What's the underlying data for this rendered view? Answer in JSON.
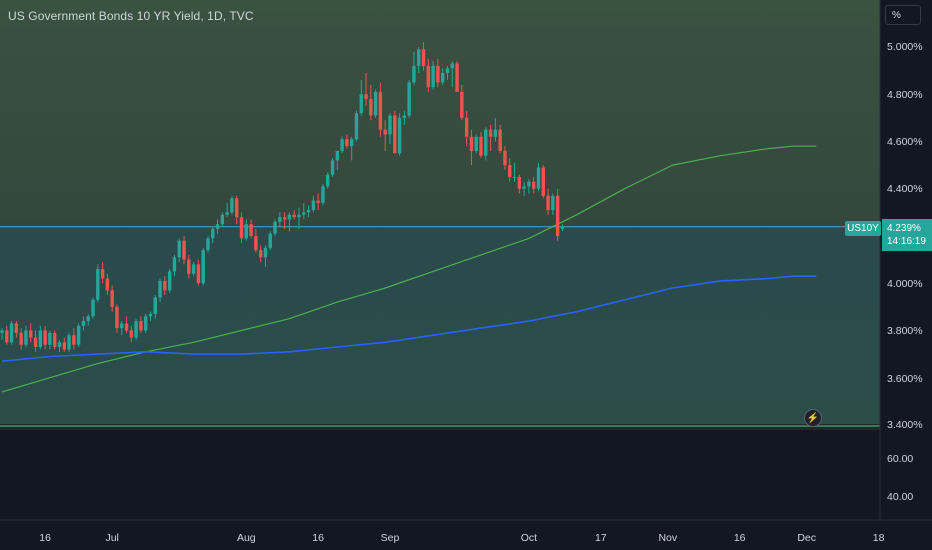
{
  "header": {
    "title": "US Government Bonds 10 YR Yield, 1D, TVC",
    "unit": "%"
  },
  "price_axis": {
    "ticks": [
      "5.000%",
      "4.800%",
      "4.600%",
      "4.400%",
      "4.000%",
      "3.800%",
      "3.600%",
      "3.400%"
    ],
    "symbol": "US10Y",
    "last_price": "4.239%",
    "countdown": "14:16:19"
  },
  "indicator_axis": {
    "ticks": [
      "60.00",
      "40.00"
    ]
  },
  "time_axis": {
    "labels": [
      "16",
      "Jul",
      "Aug",
      "16",
      "Sep",
      "Oct",
      "17",
      "Nov",
      "16",
      "Dec",
      "18"
    ]
  },
  "colors": {
    "up": "#26a69a",
    "down": "#ef5350",
    "ma_fast": "#4caf50",
    "ma_slow": "#2962ff",
    "price_line": "#4da6c8"
  },
  "chart_data": {
    "type": "candlestick",
    "title": "US Government Bonds 10 YR Yield, 1D, TVC",
    "ylim": [
      3.4,
      5.07
    ],
    "last_price": 4.239,
    "candles": [
      [
        3.79,
        3.81,
        3.76,
        3.8
      ],
      [
        3.8,
        3.82,
        3.74,
        3.75
      ],
      [
        3.75,
        3.84,
        3.74,
        3.83
      ],
      [
        3.83,
        3.84,
        3.77,
        3.79
      ],
      [
        3.79,
        3.81,
        3.72,
        3.74
      ],
      [
        3.74,
        3.82,
        3.73,
        3.8
      ],
      [
        3.8,
        3.83,
        3.75,
        3.77
      ],
      [
        3.77,
        3.8,
        3.71,
        3.73
      ],
      [
        3.73,
        3.82,
        3.72,
        3.8
      ],
      [
        3.8,
        3.82,
        3.72,
        3.74
      ],
      [
        3.74,
        3.8,
        3.72,
        3.79
      ],
      [
        3.79,
        3.8,
        3.72,
        3.73
      ],
      [
        3.73,
        3.76,
        3.71,
        3.75
      ],
      [
        3.75,
        3.77,
        3.71,
        3.72
      ],
      [
        3.72,
        3.79,
        3.71,
        3.78
      ],
      [
        3.78,
        3.81,
        3.72,
        3.74
      ],
      [
        3.74,
        3.83,
        3.73,
        3.82
      ],
      [
        3.82,
        3.86,
        3.8,
        3.84
      ],
      [
        3.84,
        3.87,
        3.82,
        3.86
      ],
      [
        3.86,
        3.94,
        3.85,
        3.93
      ],
      [
        3.93,
        4.08,
        3.92,
        4.06
      ],
      [
        4.06,
        4.09,
        4.0,
        4.02
      ],
      [
        4.02,
        4.04,
        3.95,
        3.97
      ],
      [
        3.97,
        3.99,
        3.88,
        3.9
      ],
      [
        3.9,
        3.91,
        3.79,
        3.81
      ],
      [
        3.81,
        3.84,
        3.78,
        3.83
      ],
      [
        3.83,
        3.86,
        3.79,
        3.8
      ],
      [
        3.8,
        3.82,
        3.75,
        3.77
      ],
      [
        3.77,
        3.85,
        3.76,
        3.84
      ],
      [
        3.84,
        3.86,
        3.79,
        3.8
      ],
      [
        3.8,
        3.87,
        3.79,
        3.86
      ],
      [
        3.86,
        3.88,
        3.84,
        3.87
      ],
      [
        3.87,
        3.95,
        3.85,
        3.94
      ],
      [
        3.94,
        4.02,
        3.92,
        4.01
      ],
      [
        4.01,
        4.03,
        3.95,
        3.97
      ],
      [
        3.97,
        4.06,
        3.96,
        4.05
      ],
      [
        4.05,
        4.12,
        4.03,
        4.11
      ],
      [
        4.11,
        4.19,
        4.09,
        4.18
      ],
      [
        4.18,
        4.2,
        4.08,
        4.1
      ],
      [
        4.1,
        4.12,
        4.02,
        4.04
      ],
      [
        4.04,
        4.09,
        4.03,
        4.08
      ],
      [
        4.08,
        4.1,
        3.99,
        4.0
      ],
      [
        4.0,
        4.15,
        3.99,
        4.14
      ],
      [
        4.14,
        4.2,
        4.13,
        4.19
      ],
      [
        4.19,
        4.24,
        4.17,
        4.23
      ],
      [
        4.23,
        4.27,
        4.21,
        4.25
      ],
      [
        4.25,
        4.3,
        4.24,
        4.29
      ],
      [
        4.29,
        4.34,
        4.28,
        4.3
      ],
      [
        4.3,
        4.37,
        4.29,
        4.36
      ],
      [
        4.36,
        4.37,
        4.25,
        4.28
      ],
      [
        4.28,
        4.3,
        4.17,
        4.19
      ],
      [
        4.19,
        4.27,
        4.18,
        4.25
      ],
      [
        4.25,
        4.27,
        4.19,
        4.2
      ],
      [
        4.2,
        4.23,
        4.13,
        4.14
      ],
      [
        4.14,
        4.16,
        4.09,
        4.11
      ],
      [
        4.11,
        4.16,
        4.07,
        4.15
      ],
      [
        4.15,
        4.22,
        4.14,
        4.21
      ],
      [
        4.21,
        4.27,
        4.2,
        4.26
      ],
      [
        4.26,
        4.3,
        4.24,
        4.28
      ],
      [
        4.28,
        4.3,
        4.23,
        4.27
      ],
      [
        4.27,
        4.3,
        4.22,
        4.29
      ],
      [
        4.29,
        4.31,
        4.27,
        4.28
      ],
      [
        4.28,
        4.32,
        4.23,
        4.29
      ],
      [
        4.29,
        4.34,
        4.27,
        4.3
      ],
      [
        4.3,
        4.33,
        4.28,
        4.31
      ],
      [
        4.31,
        4.37,
        4.3,
        4.35
      ],
      [
        4.35,
        4.38,
        4.31,
        4.34
      ],
      [
        4.34,
        4.42,
        4.33,
        4.41
      ],
      [
        4.41,
        4.47,
        4.4,
        4.46
      ],
      [
        4.46,
        4.53,
        4.45,
        4.52
      ],
      [
        4.52,
        4.56,
        4.48,
        4.56
      ],
      [
        4.56,
        4.62,
        4.55,
        4.61
      ],
      [
        4.61,
        4.63,
        4.57,
        4.58
      ],
      [
        4.58,
        4.62,
        4.52,
        4.61
      ],
      [
        4.61,
        4.73,
        4.6,
        4.72
      ],
      [
        4.72,
        4.86,
        4.71,
        4.8
      ],
      [
        4.8,
        4.89,
        4.75,
        4.78
      ],
      [
        4.78,
        4.84,
        4.69,
        4.71
      ],
      [
        4.71,
        4.82,
        4.7,
        4.81
      ],
      [
        4.81,
        4.85,
        4.62,
        4.65
      ],
      [
        4.65,
        4.69,
        4.56,
        4.63
      ],
      [
        4.63,
        4.72,
        4.59,
        4.71
      ],
      [
        4.71,
        4.73,
        4.55,
        4.55
      ],
      [
        4.55,
        4.72,
        4.54,
        4.7
      ],
      [
        4.7,
        4.73,
        4.67,
        4.71
      ],
      [
        4.71,
        4.86,
        4.7,
        4.85
      ],
      [
        4.85,
        4.98,
        4.84,
        4.92
      ],
      [
        4.92,
        5.0,
        4.89,
        4.99
      ],
      [
        4.99,
        5.02,
        4.9,
        4.92
      ],
      [
        4.92,
        4.95,
        4.81,
        4.83
      ],
      [
        4.83,
        4.94,
        4.82,
        4.92
      ],
      [
        4.92,
        4.95,
        4.83,
        4.85
      ],
      [
        4.85,
        4.91,
        4.84,
        4.89
      ],
      [
        4.89,
        4.92,
        4.86,
        4.91
      ],
      [
        4.91,
        4.94,
        4.83,
        4.93
      ],
      [
        4.93,
        4.94,
        4.82,
        4.81
      ],
      [
        4.81,
        4.84,
        4.69,
        4.7
      ],
      [
        4.7,
        4.73,
        4.58,
        4.62
      ],
      [
        4.62,
        4.65,
        4.5,
        4.56
      ],
      [
        4.56,
        4.63,
        4.55,
        4.62
      ],
      [
        4.62,
        4.64,
        4.53,
        4.54
      ],
      [
        4.54,
        4.66,
        4.52,
        4.65
      ],
      [
        4.65,
        4.67,
        4.56,
        4.62
      ],
      [
        4.62,
        4.7,
        4.6,
        4.65
      ],
      [
        4.65,
        4.67,
        4.55,
        4.56
      ],
      [
        4.56,
        4.58,
        4.48,
        4.5
      ],
      [
        4.5,
        4.53,
        4.43,
        4.45
      ],
      [
        4.45,
        4.51,
        4.43,
        4.45
      ],
      [
        4.45,
        4.46,
        4.38,
        4.4
      ],
      [
        4.4,
        4.43,
        4.37,
        4.41
      ],
      [
        4.41,
        4.44,
        4.38,
        4.43
      ],
      [
        4.43,
        4.45,
        4.38,
        4.4
      ],
      [
        4.4,
        4.51,
        4.39,
        4.49
      ],
      [
        4.49,
        4.5,
        4.36,
        4.37
      ],
      [
        4.37,
        4.4,
        4.29,
        4.31
      ],
      [
        4.31,
        4.38,
        4.29,
        4.37
      ],
      [
        4.37,
        4.4,
        4.18,
        4.2
      ],
      [
        4.23,
        4.25,
        4.22,
        4.24
      ]
    ],
    "moving_averages": [
      {
        "points": [
          [
            0,
            3.54
          ],
          [
            10,
            3.6
          ],
          [
            20,
            3.66
          ],
          [
            30,
            3.71
          ],
          [
            40,
            3.75
          ],
          [
            50,
            3.8
          ],
          [
            60,
            3.85
          ],
          [
            70,
            3.92
          ],
          [
            80,
            3.98
          ],
          [
            90,
            4.05
          ],
          [
            100,
            4.12
          ],
          [
            110,
            4.19
          ],
          [
            120,
            4.29
          ],
          [
            130,
            4.4
          ],
          [
            140,
            4.5
          ],
          [
            150,
            4.54
          ],
          [
            160,
            4.57
          ],
          [
            165,
            4.58
          ],
          [
            170,
            4.58
          ]
        ]
      },
      {
        "points": [
          [
            0,
            3.67
          ],
          [
            10,
            3.69
          ],
          [
            20,
            3.7
          ],
          [
            30,
            3.71
          ],
          [
            40,
            3.7
          ],
          [
            50,
            3.7
          ],
          [
            60,
            3.71
          ],
          [
            70,
            3.73
          ],
          [
            80,
            3.75
          ],
          [
            90,
            3.78
          ],
          [
            100,
            3.81
          ],
          [
            110,
            3.84
          ],
          [
            120,
            3.88
          ],
          [
            130,
            3.93
          ],
          [
            140,
            3.98
          ],
          [
            150,
            4.01
          ],
          [
            160,
            4.02
          ],
          [
            165,
            4.03
          ],
          [
            170,
            4.03
          ]
        ]
      }
    ],
    "time_ticks": [
      {
        "label": "16",
        "x": 9
      },
      {
        "label": "Jul",
        "x": 23
      },
      {
        "label": "Aug",
        "x": 51
      },
      {
        "label": "16",
        "x": 66
      },
      {
        "label": "Sep",
        "x": 81
      },
      {
        "label": "Oct",
        "x": 110
      },
      {
        "label": "17",
        "x": 125
      },
      {
        "label": "Nov",
        "x": 139
      },
      {
        "label": "16",
        "x": 154
      },
      {
        "label": "Dec",
        "x": 168
      },
      {
        "label": "18",
        "x": 183
      }
    ]
  }
}
